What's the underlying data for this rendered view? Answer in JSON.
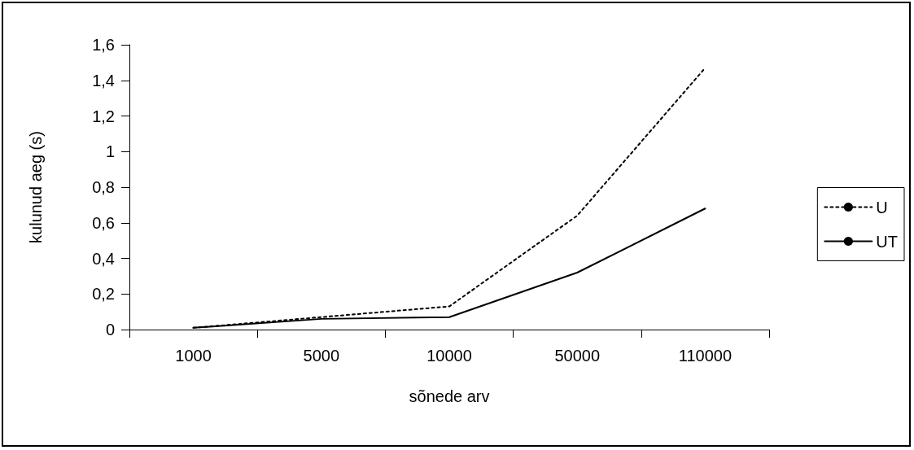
{
  "chart_data": {
    "type": "line",
    "xlabel": "sõnede arv",
    "ylabel": "kulunud aeg (s)",
    "categories": [
      "1000",
      "5000",
      "10000",
      "50000",
      "110000"
    ],
    "series": [
      {
        "name": "U",
        "color": "#000000",
        "line_style": "dotted",
        "values": [
          0.01,
          0.07,
          0.13,
          0.64,
          1.47
        ]
      },
      {
        "name": "UT",
        "color": "#000000",
        "line_style": "solid",
        "values": [
          0.01,
          0.06,
          0.07,
          0.32,
          0.68
        ]
      }
    ],
    "ylim": [
      0,
      1.6
    ],
    "yticks": [
      0,
      {
        "value": 0.2,
        "label": "0,2"
      },
      {
        "value": 0.4,
        "label": "0,4"
      },
      {
        "value": 0.6,
        "label": "0,6"
      },
      {
        "value": 0.8,
        "label": "0,8"
      },
      1,
      {
        "value": 1.2,
        "label": "1,2"
      },
      {
        "value": 1.4,
        "label": "1,4"
      },
      {
        "value": 1.6,
        "label": "1,6"
      }
    ],
    "grid": false,
    "legend": "right",
    "marker": "none"
  }
}
